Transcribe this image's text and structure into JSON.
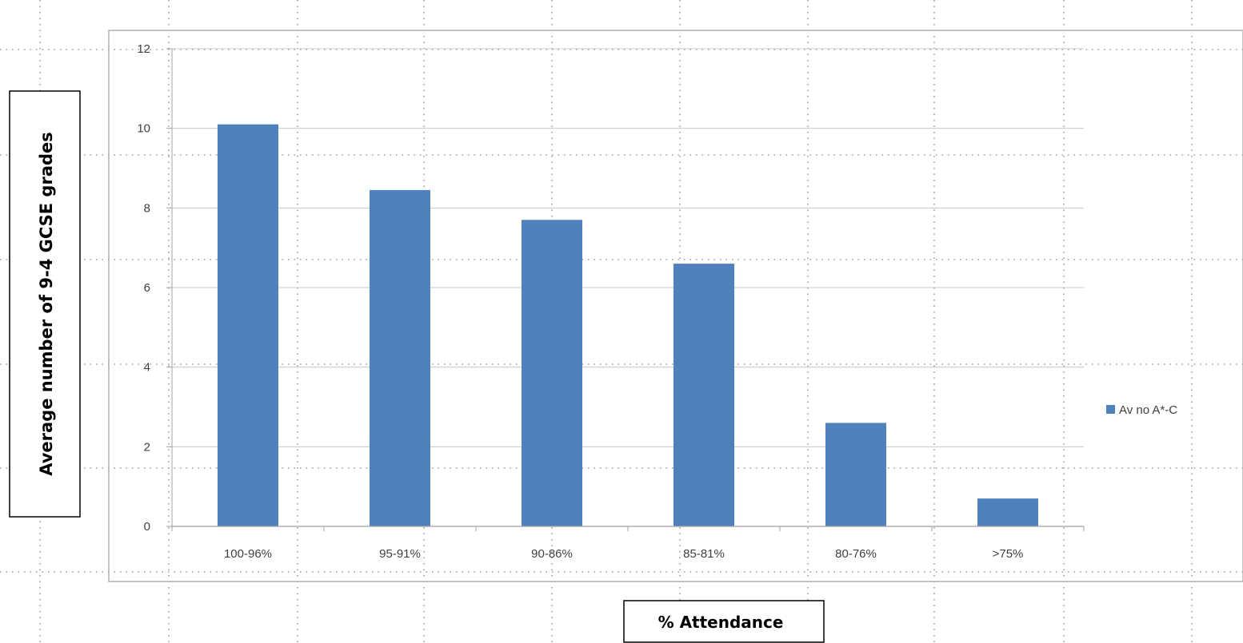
{
  "chart_data": {
    "type": "bar",
    "categories": [
      "100-96%",
      "95-91%",
      "90-86%",
      "85-81%",
      "80-76%",
      ">75%"
    ],
    "series": [
      {
        "name": "Av no A*-C",
        "values": [
          10.1,
          8.45,
          7.7,
          6.6,
          2.6,
          0.7
        ],
        "color": "#4f81bd"
      }
    ],
    "xlabel": "% Attendance",
    "ylabel": "Average number of 9-4 GCSE grades",
    "ylim": [
      0,
      12
    ],
    "yticks": [
      "0",
      "2",
      "4",
      "6",
      "8",
      "10",
      "12"
    ],
    "grid": true,
    "legend_position": "right"
  }
}
